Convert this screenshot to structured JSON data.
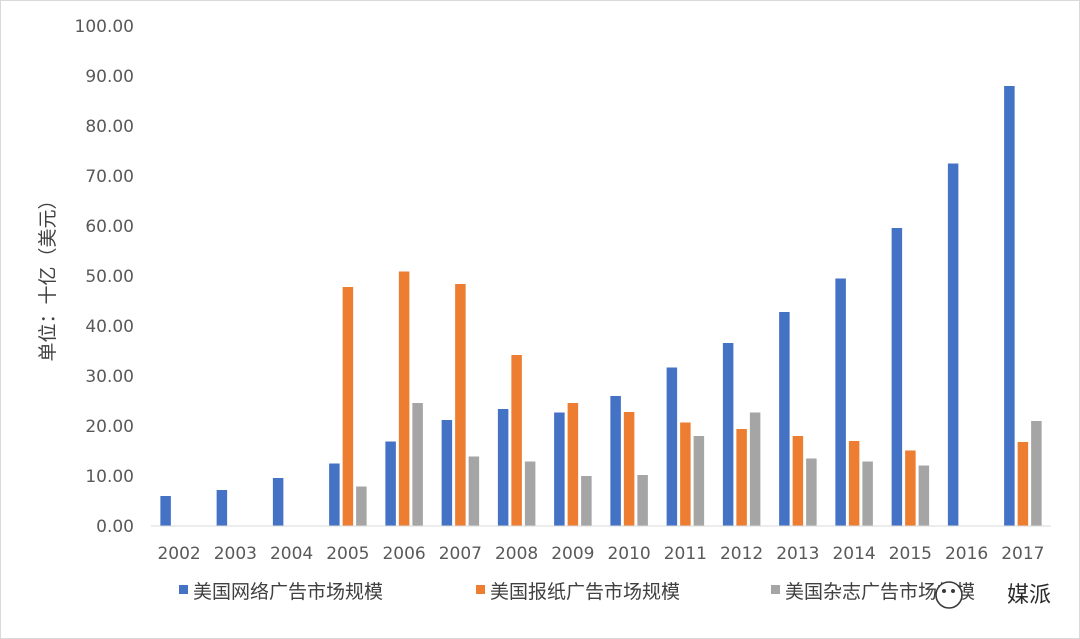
{
  "chart_data": {
    "type": "bar",
    "categories": [
      "2002",
      "2003",
      "2004",
      "2005",
      "2006",
      "2007",
      "2008",
      "2009",
      "2010",
      "2011",
      "2012",
      "2013",
      "2014",
      "2015",
      "2016",
      "2017"
    ],
    "ylabel": "单位：十亿（美元）",
    "ylim": [
      0,
      100
    ],
    "yticks": [
      "0.00",
      "10.00",
      "20.00",
      "30.00",
      "40.00",
      "50.00",
      "60.00",
      "70.00",
      "80.00",
      "90.00",
      "100.00"
    ],
    "grid": false,
    "legend_position": "bottom",
    "series": [
      {
        "name": "美国网络广告市场规模",
        "color": "#4472c4",
        "values": [
          6.0,
          7.2,
          9.6,
          12.5,
          16.9,
          21.2,
          23.4,
          22.7,
          26.0,
          31.7,
          36.6,
          42.8,
          49.5,
          59.6,
          72.5,
          88.0
        ]
      },
      {
        "name": "美国报纸广告市场规模",
        "color": "#ed7d31",
        "values": [
          null,
          null,
          null,
          47.8,
          50.9,
          48.4,
          34.2,
          24.6,
          22.8,
          20.7,
          19.4,
          18.0,
          17.0,
          15.1,
          null,
          16.8
        ]
      },
      {
        "name": "美国杂志广告市场规模",
        "color": "#a5a5a5",
        "values": [
          null,
          null,
          null,
          7.9,
          24.6,
          13.9,
          12.9,
          10.0,
          10.2,
          18.0,
          22.7,
          13.5,
          12.9,
          12.1,
          null,
          21.0
        ]
      }
    ]
  },
  "watermark": {
    "text": "媒派",
    "icon": "wechat-icon"
  }
}
